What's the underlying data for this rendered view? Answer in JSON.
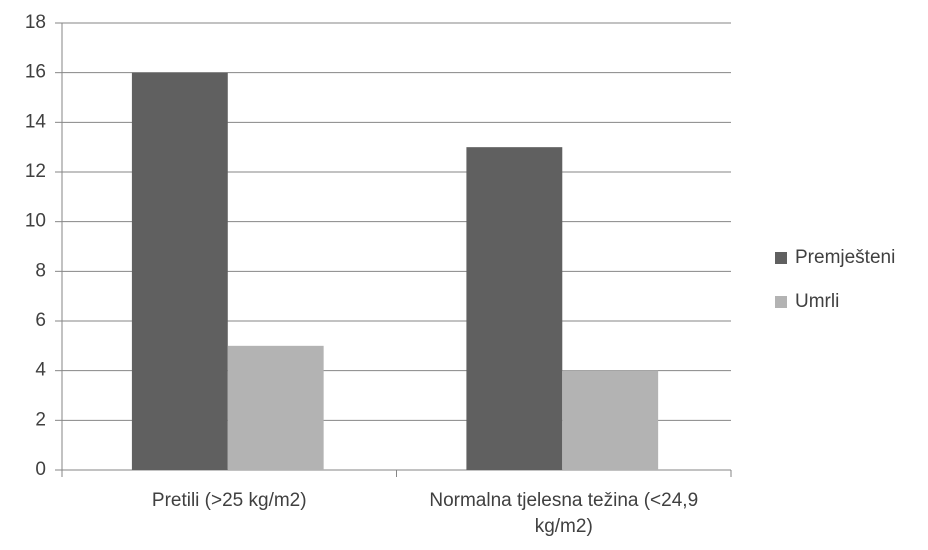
{
  "chart_data": {
    "type": "bar",
    "categories": [
      "Pretili (>25 kg/m2)",
      "Normalna tjelesna težina (<24,9 kg/m2)"
    ],
    "series": [
      {
        "name": "Premješteni",
        "color": "#606060",
        "values": [
          16,
          13
        ]
      },
      {
        "name": "Umrli",
        "color": "#b3b3b3",
        "values": [
          5,
          4
        ]
      }
    ],
    "ylim": [
      0,
      18
    ],
    "yticks": [
      0,
      2,
      4,
      6,
      8,
      10,
      12,
      14,
      16,
      18
    ],
    "grid": true,
    "legend": "right"
  }
}
